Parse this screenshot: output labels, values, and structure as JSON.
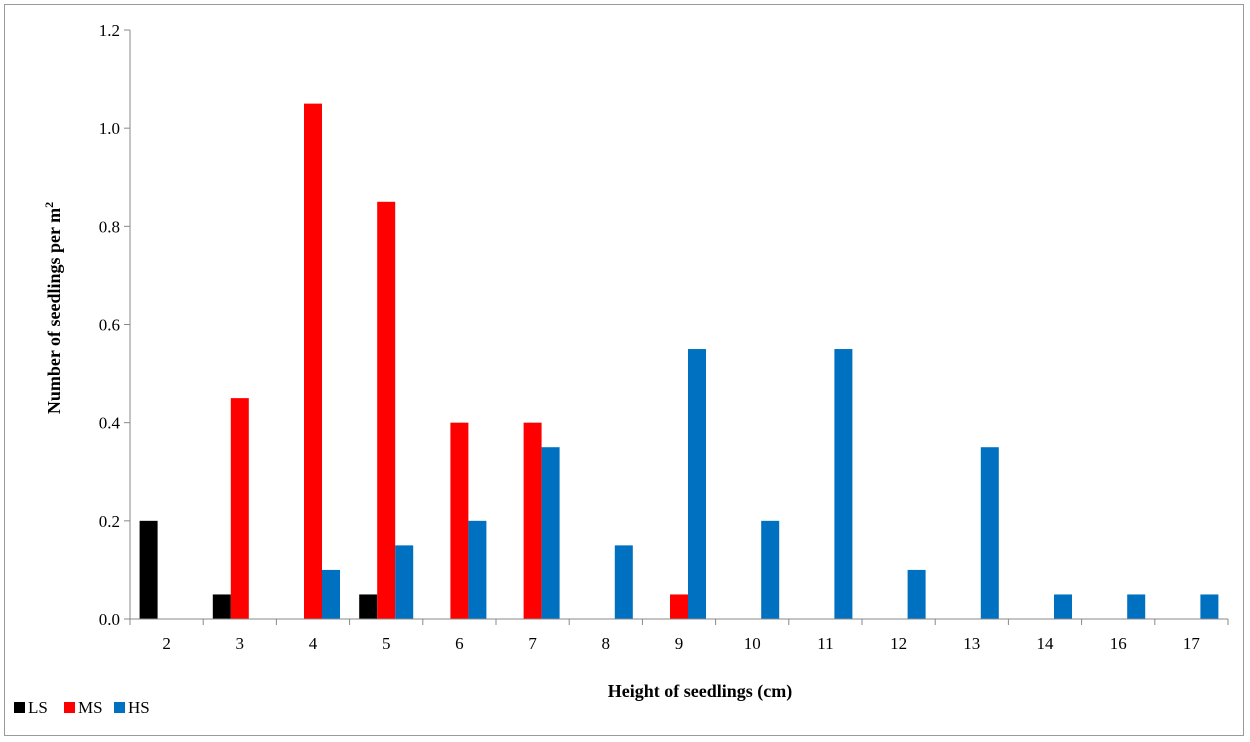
{
  "chart_data": {
    "type": "bar",
    "title": "",
    "xlabel": "Height of seedlings (cm)",
    "ylabel_main": "Number of seedlings per m",
    "ylabel_sup": "2",
    "ylim": [
      0,
      1.2
    ],
    "yticks": [
      "0.0",
      "0.2",
      "0.4",
      "0.6",
      "0.8",
      "1.0",
      "1.2"
    ],
    "categories": [
      "2",
      "3",
      "4",
      "5",
      "6",
      "7",
      "8",
      "9",
      "10",
      "11",
      "12",
      "13",
      "14",
      "16",
      "17"
    ],
    "series": [
      {
        "name": "LS",
        "color": "#000000",
        "values": [
          0.2,
          0.05,
          0,
          0.05,
          0,
          0,
          0,
          0,
          0,
          0,
          0,
          0,
          0,
          0,
          0
        ]
      },
      {
        "name": "MS",
        "color": "#ff0000",
        "values": [
          0,
          0.45,
          1.05,
          0.85,
          0.4,
          0.4,
          0,
          0.05,
          0,
          0,
          0,
          0,
          0,
          0,
          0
        ]
      },
      {
        "name": "HS",
        "color": "#0070c0",
        "values": [
          0,
          0,
          0.1,
          0.15,
          0.2,
          0.35,
          0.15,
          0.55,
          0.2,
          0.55,
          0.1,
          0.35,
          0.05,
          0.05,
          0.05
        ]
      }
    ],
    "legend_position": "bottom-left",
    "grid": false
  }
}
